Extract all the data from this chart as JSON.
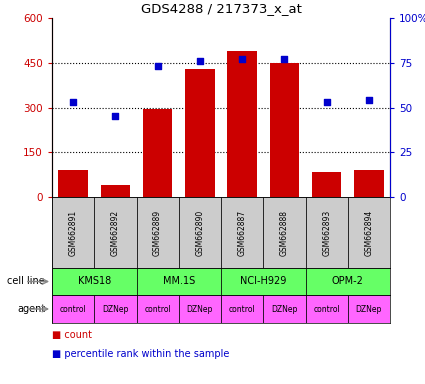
{
  "title": "GDS4288 / 217373_x_at",
  "samples": [
    "GSM662891",
    "GSM662892",
    "GSM662889",
    "GSM662890",
    "GSM662887",
    "GSM662888",
    "GSM662893",
    "GSM662894"
  ],
  "counts": [
    90,
    40,
    295,
    430,
    490,
    450,
    85,
    90
  ],
  "percentile_ranks": [
    53,
    45,
    73,
    76,
    77,
    77,
    53,
    54
  ],
  "cell_lines": [
    "KMS18",
    "MM.1S",
    "NCI-H929",
    "OPM-2"
  ],
  "cell_line_spans": [
    [
      0,
      2
    ],
    [
      2,
      4
    ],
    [
      4,
      6
    ],
    [
      6,
      8
    ]
  ],
  "agents": [
    "control",
    "DZNep",
    "control",
    "DZNep",
    "control",
    "DZNep",
    "control",
    "DZNep"
  ],
  "ylim_left": [
    0,
    600
  ],
  "ylim_right": [
    0,
    100
  ],
  "yticks_left": [
    0,
    150,
    300,
    450,
    600
  ],
  "yticks_right": [
    0,
    25,
    50,
    75,
    100
  ],
  "bar_color": "#cc0000",
  "dot_color": "#0000cc",
  "cell_line_color": "#66ff66",
  "agent_color": "#ff66ff",
  "sample_bg_color": "#cccccc",
  "left_axis_color": "#cc0000",
  "right_axis_color": "#0000cc",
  "legend_items": [
    {
      "label": "count",
      "color": "#cc0000"
    },
    {
      "label": "percentile rank within the sample",
      "color": "#0000cc"
    }
  ],
  "figsize": [
    4.25,
    3.84
  ],
  "dpi": 100
}
